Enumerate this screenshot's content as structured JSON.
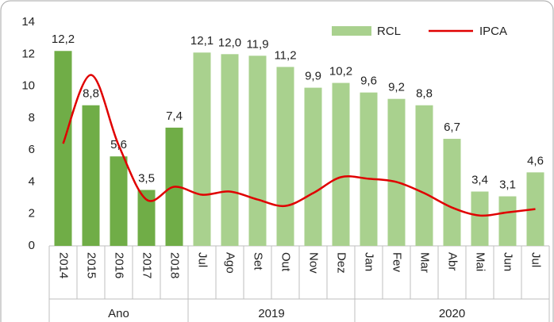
{
  "chart_data": {
    "type": "bar",
    "categories": [
      "2014",
      "2015",
      "2016",
      "2017",
      "2018",
      "Jul",
      "Ago",
      "Set",
      "Out",
      "Nov",
      "Dez",
      "Jan",
      "Fev",
      "Mar",
      "Abr",
      "Mai",
      "Jun",
      "Jul"
    ],
    "groups": [
      {
        "label": "Ano",
        "span": 5
      },
      {
        "label": "2019",
        "span": 6
      },
      {
        "label": "2020",
        "span": 7
      }
    ],
    "series": [
      {
        "name": "RCL",
        "type": "bar",
        "color": "#a9d18e",
        "point_colors": [
          "#70ad47",
          "#70ad47",
          "#70ad47",
          "#70ad47",
          "#70ad47",
          "#a9d18e",
          "#a9d18e",
          "#a9d18e",
          "#a9d18e",
          "#a9d18e",
          "#a9d18e",
          "#a9d18e",
          "#a9d18e",
          "#a9d18e",
          "#a9d18e",
          "#a9d18e",
          "#a9d18e",
          "#a9d18e"
        ],
        "values": [
          12.2,
          8.8,
          5.6,
          3.5,
          7.4,
          12.1,
          12.0,
          11.9,
          11.2,
          9.9,
          10.2,
          9.6,
          9.2,
          8.8,
          6.7,
          3.4,
          3.1,
          4.6
        ],
        "value_labels": [
          "12,2",
          "8,8",
          "5,6",
          "3,5",
          "7,4",
          "12,1",
          "12,0",
          "11,9",
          "11,2",
          "9,9",
          "10,2",
          "9,6",
          "9,2",
          "8,8",
          "6,7",
          "3,4",
          "3,1",
          "4,6"
        ]
      },
      {
        "name": "IPCA",
        "type": "line",
        "color": "#e00000",
        "values": [
          6.4,
          10.7,
          6.3,
          2.9,
          3.7,
          3.2,
          3.4,
          2.9,
          2.5,
          3.3,
          4.3,
          4.2,
          4.0,
          3.3,
          2.4,
          1.9,
          2.1,
          2.3
        ]
      }
    ],
    "ylim": [
      0,
      14
    ],
    "yticks": [
      0,
      2,
      4,
      6,
      8,
      10,
      12,
      14
    ],
    "grid": false,
    "legend": "top-right"
  }
}
